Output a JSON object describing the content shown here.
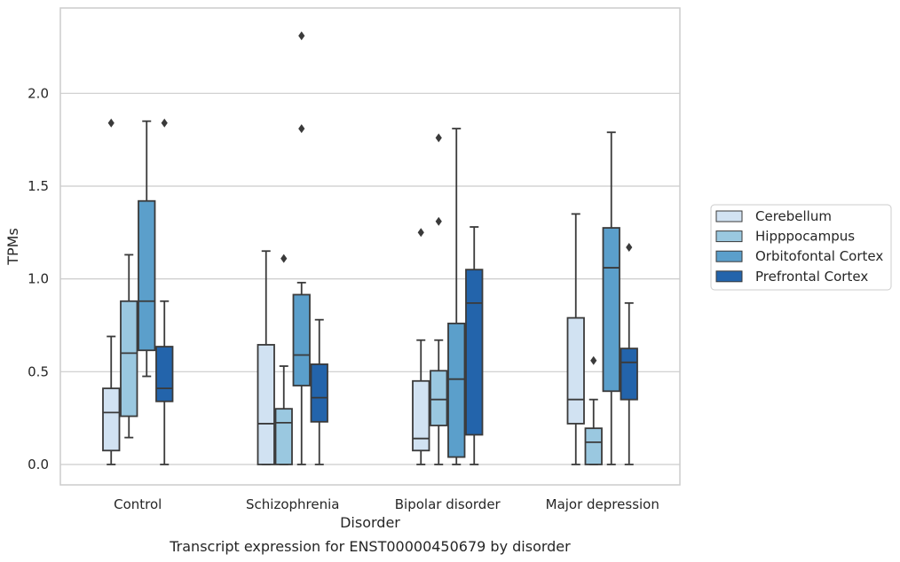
{
  "chart_data": {
    "type": "box",
    "xlabel": "Disorder",
    "ylabel": "TPMs",
    "caption": "Transcript expression for ENST00000450679 by disorder",
    "categories": [
      "Control",
      "Schizophrenia",
      "Bipolar disorder",
      "Major depression"
    ],
    "ylim": [
      -0.11,
      2.46
    ],
    "yticks": [
      "0.0",
      "0.5",
      "1.0",
      "1.5",
      "2.0"
    ],
    "grid": "horizontal",
    "legend_position": "right",
    "colors": [
      "#d1e2f2",
      "#9ac8e0",
      "#5b9fcb",
      "#2364ab"
    ],
    "series": [
      {
        "name": "Cerebellum",
        "boxes": [
          {
            "whislo": 0.0,
            "q1": 0.075,
            "med": 0.28,
            "q3": 0.41,
            "whishi": 0.69,
            "fliers": [
              1.84
            ]
          },
          {
            "whislo": 0.0,
            "q1": 0.0,
            "med": 0.22,
            "q3": 0.645,
            "whishi": 1.15,
            "fliers": []
          },
          {
            "whislo": 0.0,
            "q1": 0.075,
            "med": 0.14,
            "q3": 0.45,
            "whishi": 0.67,
            "fliers": [
              1.25
            ]
          },
          {
            "whislo": 0.0,
            "q1": 0.22,
            "med": 0.35,
            "q3": 0.79,
            "whishi": 1.35,
            "fliers": []
          }
        ]
      },
      {
        "name": "Hipppocampus",
        "boxes": [
          {
            "whislo": 0.145,
            "q1": 0.26,
            "med": 0.6,
            "q3": 0.88,
            "whishi": 1.13,
            "fliers": []
          },
          {
            "whislo": 0.0,
            "q1": 0.0,
            "med": 0.225,
            "q3": 0.3,
            "whishi": 0.53,
            "fliers": [
              1.11
            ]
          },
          {
            "whislo": 0.0,
            "q1": 0.21,
            "med": 0.35,
            "q3": 0.505,
            "whishi": 0.67,
            "fliers": [
              1.31,
              1.76
            ]
          },
          {
            "whislo": 0.0,
            "q1": 0.0,
            "med": 0.12,
            "q3": 0.195,
            "whishi": 0.35,
            "fliers": [
              0.56
            ]
          }
        ]
      },
      {
        "name": "Orbitofontal Cortex",
        "boxes": [
          {
            "whislo": 0.475,
            "q1": 0.615,
            "med": 0.88,
            "q3": 1.42,
            "whishi": 1.85,
            "fliers": []
          },
          {
            "whislo": 0.0,
            "q1": 0.425,
            "med": 0.59,
            "q3": 0.915,
            "whishi": 0.98,
            "fliers": [
              1.81,
              2.31
            ]
          },
          {
            "whislo": 0.0,
            "q1": 0.04,
            "med": 0.46,
            "q3": 0.76,
            "whishi": 1.81,
            "fliers": []
          },
          {
            "whislo": 0.0,
            "q1": 0.395,
            "med": 1.06,
            "q3": 1.275,
            "whishi": 1.79,
            "fliers": []
          }
        ]
      },
      {
        "name": "Prefrontal Cortex",
        "boxes": [
          {
            "whislo": 0.0,
            "q1": 0.34,
            "med": 0.41,
            "q3": 0.635,
            "whishi": 0.88,
            "fliers": [
              1.84
            ]
          },
          {
            "whislo": 0.0,
            "q1": 0.23,
            "med": 0.36,
            "q3": 0.54,
            "whishi": 0.78,
            "fliers": []
          },
          {
            "whislo": 0.0,
            "q1": 0.16,
            "med": 0.87,
            "q3": 1.05,
            "whishi": 1.28,
            "fliers": []
          },
          {
            "whislo": 0.0,
            "q1": 0.35,
            "med": 0.55,
            "q3": 0.625,
            "whishi": 0.87,
            "fliers": [
              1.17
            ]
          }
        ]
      }
    ]
  }
}
